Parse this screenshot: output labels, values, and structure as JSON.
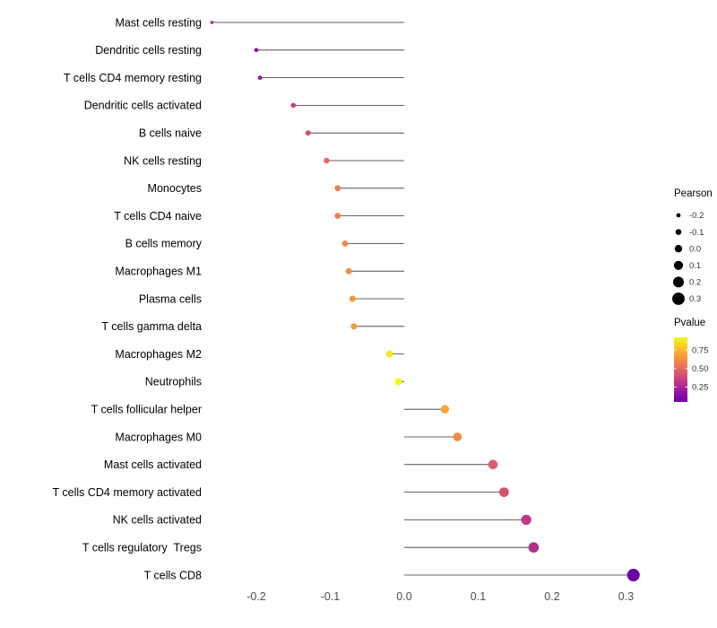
{
  "chart_data": {
    "type": "scatter",
    "subtype": "lollipop",
    "orientation": "horizontal",
    "title": "",
    "xlabel": "",
    "ylabel": "",
    "grid": false,
    "background": "#ffffff",
    "rows": [
      {
        "label": "Mast cells resting",
        "pearson": -0.26,
        "pvalue": 0.25
      },
      {
        "label": "Dendritic cells resting",
        "pearson": -0.2,
        "pvalue": 0.18
      },
      {
        "label": "T cells CD4 memory resting",
        "pearson": -0.195,
        "pvalue": 0.18
      },
      {
        "label": "Dendritic cells activated",
        "pearson": -0.15,
        "pvalue": 0.35
      },
      {
        "label": "B cells naive",
        "pearson": -0.13,
        "pvalue": 0.42
      },
      {
        "label": "NK cells resting",
        "pearson": -0.105,
        "pvalue": 0.5
      },
      {
        "label": "Monocytes",
        "pearson": -0.09,
        "pvalue": 0.57
      },
      {
        "label": "T cells CD4 naive",
        "pearson": -0.09,
        "pvalue": 0.58
      },
      {
        "label": "B cells memory",
        "pearson": -0.08,
        "pvalue": 0.62
      },
      {
        "label": "Macrophages M1",
        "pearson": -0.075,
        "pvalue": 0.63
      },
      {
        "label": "Plasma cells",
        "pearson": -0.07,
        "pvalue": 0.65
      },
      {
        "label": "T cells gamma delta",
        "pearson": -0.068,
        "pvalue": 0.66
      },
      {
        "label": "Macrophages M2",
        "pearson": -0.02,
        "pvalue": 0.88
      },
      {
        "label": "Neutrophils",
        "pearson": -0.008,
        "pvalue": 0.92
      },
      {
        "label": "T cells follicular helper",
        "pearson": 0.055,
        "pvalue": 0.7
      },
      {
        "label": "Macrophages M0",
        "pearson": 0.072,
        "pvalue": 0.62
      },
      {
        "label": "Mast cells activated",
        "pearson": 0.12,
        "pvalue": 0.46
      },
      {
        "label": "T cells CD4 memory activated",
        "pearson": 0.135,
        "pvalue": 0.42
      },
      {
        "label": "NK cells activated",
        "pearson": 0.165,
        "pvalue": 0.32
      },
      {
        "label": "T cells regulatory  Tregs",
        "pearson": 0.175,
        "pvalue": 0.28
      },
      {
        "label": "T cells CD8",
        "pearson": 0.31,
        "pvalue": 0.05
      }
    ],
    "x_axis": {
      "tick_values": [
        -0.2,
        -0.1,
        0.0,
        0.1,
        0.2,
        0.3
      ],
      "tick_labels": [
        "-0.2",
        "-0.1",
        "0.0",
        "0.1",
        "0.2",
        "0.3"
      ],
      "range": [
        -0.285,
        0.33
      ],
      "baseline": 0.0
    },
    "size_legend": {
      "title": "Pearson",
      "values": [
        -0.2,
        -0.1,
        0.0,
        0.1,
        0.2,
        0.3
      ],
      "labels": [
        "-0.2",
        "-0.1",
        "0.0",
        "0.1",
        "0.2",
        "0.3"
      ]
    },
    "color_legend": {
      "title": "Pvalue",
      "tick_values": [
        0.75,
        0.5,
        0.25
      ],
      "tick_labels": [
        "0.75",
        "0.50",
        "0.25"
      ],
      "domain": [
        0.05,
        0.92
      ],
      "top_color": "#f0f921",
      "bottom_color": "#6a00a8"
    },
    "palette": {
      "name": "plasma",
      "stops": [
        "#0d0887",
        "#41049d",
        "#6a00a8",
        "#8f0da4",
        "#b12a90",
        "#cc4778",
        "#e16462",
        "#f2844b",
        "#fca636",
        "#fcce25",
        "#f0f921"
      ]
    },
    "style_colors": {
      "stem": "#333333",
      "axis_text": "#4d4d4d",
      "category_text": "#000000",
      "legend_text": "#333333",
      "legend_title_text": "#000000"
    }
  }
}
